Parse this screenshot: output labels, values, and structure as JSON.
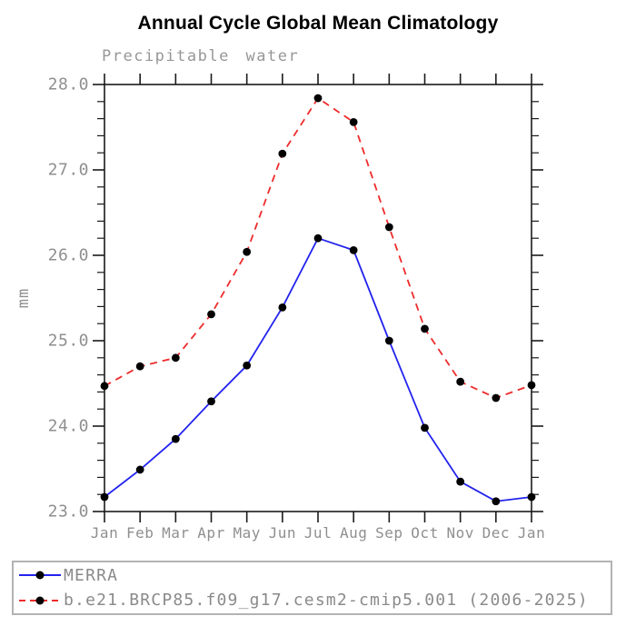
{
  "title": "Annual Cycle Global Mean Climatology",
  "subtitle": "Precipitable water",
  "palette": {
    "merra_blue": "#2323ee",
    "model_red": "#ee2b2b",
    "marker_black": "#000000",
    "axis_black": "#1a1a1a",
    "label_gray": "#8f8f8f",
    "legend_border_gray": "#b3b3b3"
  },
  "chart_data": {
    "type": "line",
    "title": "Annual Cycle Global Mean Climatology",
    "subtitle": "Precipitable water",
    "xlabel": "",
    "ylabel": "mm",
    "categories": [
      "Jan",
      "Feb",
      "Mar",
      "Apr",
      "May",
      "Jun",
      "Jul",
      "Aug",
      "Sep",
      "Oct",
      "Nov",
      "Dec",
      "Jan"
    ],
    "ylim": [
      23.0,
      28.0
    ],
    "ytick_major": 1.0,
    "ytick_minor": 0.2,
    "ytick_labels": [
      "23.0",
      "24.0",
      "25.0",
      "26.0",
      "27.0",
      "28.0"
    ],
    "grid": "off",
    "legend_position": "bottom-box",
    "series": [
      {
        "name": "MERRA",
        "color": "#2323ee",
        "line_style": "solid",
        "marker": "filled-black-circle",
        "values": [
          23.17,
          23.49,
          23.85,
          24.29,
          24.71,
          25.39,
          26.2,
          26.06,
          25.0,
          23.98,
          23.35,
          23.12,
          23.17
        ]
      },
      {
        "name": "b.e21.BRCP85.f09_g17.cesm2-cmip5.001 (2006-2025)",
        "color": "#ee2b2b",
        "line_style": "dashed",
        "marker": "filled-black-circle",
        "values": [
          24.47,
          24.7,
          24.8,
          25.31,
          26.04,
          27.19,
          27.84,
          27.56,
          26.33,
          25.14,
          24.52,
          24.33,
          24.48
        ]
      }
    ]
  }
}
